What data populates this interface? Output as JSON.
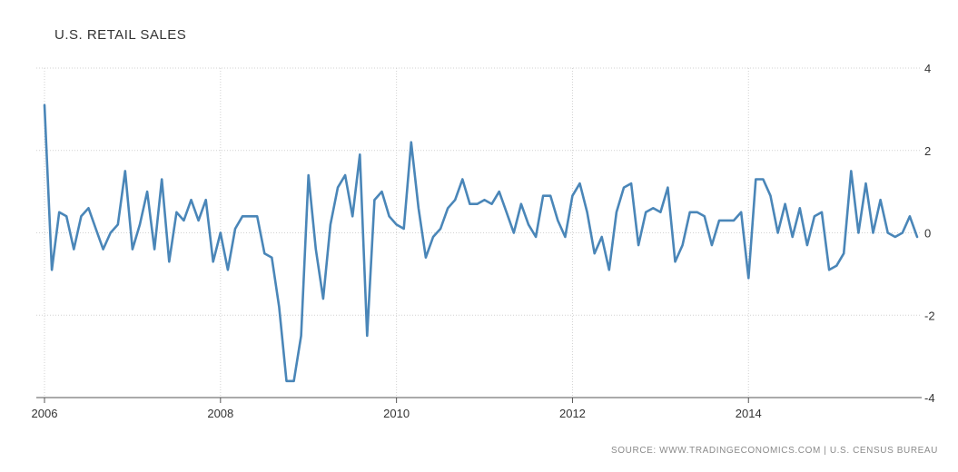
{
  "chart_data": {
    "type": "line",
    "title": "U.S. RETAIL SALES",
    "source": "SOURCE: WWW.TRADINGECONOMICS.COM | U.S. CENSUS BUREAU",
    "xlabel": "",
    "ylabel": "",
    "x_start": "2006-01",
    "x_end": "2015-12",
    "x_ticks": [
      "2006",
      "2008",
      "2010",
      "2012",
      "2014"
    ],
    "ylim": [
      -4,
      4
    ],
    "y_ticks": [
      "4",
      "2",
      "0",
      "-2",
      "-4"
    ],
    "grid": true,
    "legend": "none",
    "line_color": "#4a86b8",
    "series": [
      {
        "values": [
          3.1,
          -0.9,
          0.5,
          0.4,
          -0.4,
          0.4,
          0.6,
          0.1,
          -0.4,
          0.0,
          0.2,
          1.5,
          -0.4,
          0.2,
          1.0,
          -0.4,
          1.3,
          -0.7,
          0.5,
          0.3,
          0.8,
          0.3,
          0.8,
          -0.7,
          0.0,
          -0.9,
          0.1,
          0.4,
          0.4,
          0.4,
          -0.5,
          -0.6,
          -1.8,
          -3.6,
          -3.6,
          -2.5,
          1.4,
          -0.4,
          -1.6,
          0.2,
          1.1,
          1.4,
          0.4,
          1.9,
          -2.5,
          0.8,
          1.0,
          0.4,
          0.2,
          0.1,
          2.2,
          0.6,
          -0.6,
          -0.1,
          0.1,
          0.6,
          0.8,
          1.3,
          0.7,
          0.7,
          0.8,
          0.7,
          1.0,
          0.5,
          0.0,
          0.7,
          0.2,
          -0.1,
          0.9,
          0.9,
          0.3,
          -0.1,
          0.9,
          1.2,
          0.5,
          -0.5,
          -0.1,
          -0.9,
          0.5,
          1.1,
          1.2,
          -0.3,
          0.5,
          0.6,
          0.5,
          1.1,
          -0.7,
          -0.3,
          0.5,
          0.5,
          0.4,
          -0.3,
          0.3,
          0.3,
          0.3,
          0.5,
          -1.1,
          1.3,
          1.3,
          0.9,
          0.0,
          0.7,
          -0.1,
          0.6,
          -0.3,
          0.4,
          0.5,
          -0.9,
          -0.8,
          -0.5,
          1.5,
          0.0,
          1.2,
          0.0,
          0.8,
          0.0,
          -0.1,
          0.0,
          0.4,
          -0.1
        ]
      }
    ]
  }
}
